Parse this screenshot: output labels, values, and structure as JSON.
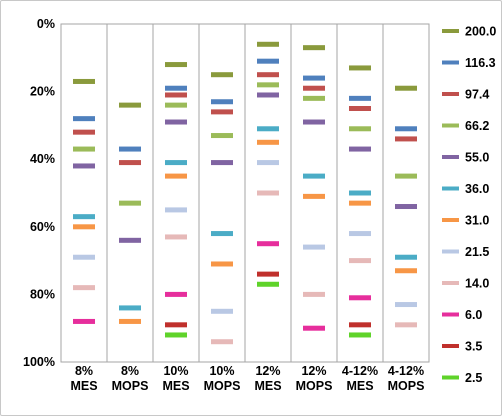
{
  "chart_data": {
    "type": "scatter",
    "marker": "horizontal-dash",
    "title": "",
    "xlabel": "",
    "ylabel": "",
    "y_axis": {
      "reversed": true,
      "ylim": [
        0,
        100
      ],
      "unit": "%",
      "ticks": [
        "0%",
        "20%",
        "40%",
        "60%",
        "80%",
        "100%"
      ]
    },
    "grid": {
      "vertical_separators": true,
      "horizontal": false
    },
    "legend": {
      "placement": "right"
    },
    "categories": [
      [
        "8%",
        "MES"
      ],
      [
        "8%",
        "MOPS"
      ],
      [
        "10%",
        "MES"
      ],
      [
        "10%",
        "MOPS"
      ],
      [
        "12%",
        "MES"
      ],
      [
        "12%",
        "MOPS"
      ],
      [
        "4-12%",
        "MES"
      ],
      [
        "4-12%",
        "MOPS"
      ]
    ],
    "series": [
      {
        "name": "200.0",
        "color": "#8a9a3c",
        "values": [
          17,
          24,
          12,
          15,
          6,
          7,
          13,
          19
        ]
      },
      {
        "name": "116.3",
        "color": "#4f80bd",
        "values": [
          28,
          37,
          19,
          23,
          11,
          16,
          22,
          31
        ]
      },
      {
        "name": "97.4",
        "color": "#c0504d",
        "values": [
          32,
          41,
          21,
          26,
          15,
          19,
          25,
          34
        ]
      },
      {
        "name": "66.2",
        "color": "#9bbb59",
        "values": [
          37,
          53,
          24,
          33,
          18,
          22,
          31,
          45
        ]
      },
      {
        "name": "55.0",
        "color": "#8064a2",
        "values": [
          42,
          64,
          29,
          41,
          21,
          29,
          37,
          54
        ]
      },
      {
        "name": "36.0",
        "color": "#4bacc6",
        "values": [
          57,
          84,
          41,
          62,
          31,
          45,
          50,
          69
        ]
      },
      {
        "name": "31.0",
        "color": "#f79646",
        "values": [
          60,
          88,
          45,
          71,
          35,
          51,
          53,
          73
        ]
      },
      {
        "name": "21.5",
        "color": "#b9c8e4",
        "values": [
          69,
          null,
          55,
          85,
          41,
          66,
          62,
          83
        ]
      },
      {
        "name": "14.0",
        "color": "#e6b9b8",
        "values": [
          78,
          null,
          63,
          94,
          50,
          80,
          70,
          89
        ]
      },
      {
        "name": "6.0",
        "color": "#e62e9c",
        "values": [
          88,
          null,
          80,
          null,
          65,
          90,
          81,
          null
        ]
      },
      {
        "name": "3.5",
        "color": "#c0302c",
        "values": [
          null,
          null,
          89,
          null,
          74,
          null,
          89,
          null
        ]
      },
      {
        "name": "2.5",
        "color": "#5fd32a",
        "values": [
          null,
          null,
          92,
          null,
          77,
          null,
          92,
          null
        ]
      }
    ]
  }
}
